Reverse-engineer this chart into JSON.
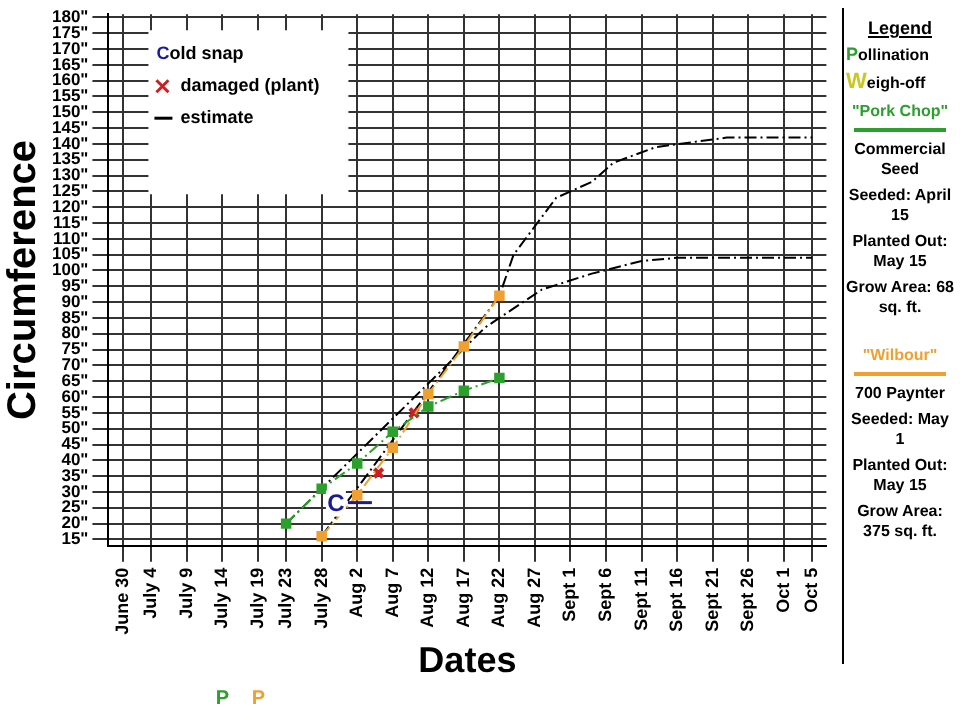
{
  "chart_data": {
    "type": "line",
    "xlabel": "Dates",
    "ylabel": "Circumference",
    "legend_title": "Legend",
    "legend": "top left",
    "grid": true,
    "xlim": [
      "--06-28",
      "--10-07"
    ],
    "xticks": [
      {
        "value": "--06-30",
        "label": "June 30"
      },
      {
        "value": "--07-04",
        "label": "July 4"
      },
      {
        "value": "--07-09",
        "label": "July 9"
      },
      {
        "value": "--07-14",
        "label": "July 14"
      },
      {
        "value": "--07-19",
        "label": "July 19"
      },
      {
        "value": "--07-23",
        "label": "July 23"
      },
      {
        "value": "--07-28",
        "label": "July 28"
      },
      {
        "value": "--08-02",
        "label": "Aug 2"
      },
      {
        "value": "--08-07",
        "label": "Aug 7"
      },
      {
        "value": "--08-12",
        "label": "Aug 12"
      },
      {
        "value": "--08-17",
        "label": "Aug 17"
      },
      {
        "value": "--08-22",
        "label": "Aug 22"
      },
      {
        "value": "--08-27",
        "label": "Aug 27"
      },
      {
        "value": "--09-01",
        "label": "Sept 1"
      },
      {
        "value": "--09-06",
        "label": "Sept 6"
      },
      {
        "value": "--09-11",
        "label": "Sept 11"
      },
      {
        "value": "--09-16",
        "label": "Sept 16"
      },
      {
        "value": "--09-21",
        "label": "Sept 21"
      },
      {
        "value": "--09-26",
        "label": "Sept 26"
      },
      {
        "value": "--10-01",
        "label": "Oct 1"
      },
      {
        "value": "--10-05",
        "label": "Oct 5"
      }
    ],
    "ylim": [
      13,
      181
    ],
    "yticks": [
      {
        "value": 15,
        "label": "15\""
      },
      {
        "value": 20,
        "label": "20\""
      },
      {
        "value": 25,
        "label": "25\""
      },
      {
        "value": 30,
        "label": "30\""
      },
      {
        "value": 35,
        "label": "35\""
      },
      {
        "value": 40,
        "label": "40\""
      },
      {
        "value": 45,
        "label": "45\""
      },
      {
        "value": 50,
        "label": "50\""
      },
      {
        "value": 55,
        "label": "55\""
      },
      {
        "value": 60,
        "label": "60\""
      },
      {
        "value": 65,
        "label": "65\""
      },
      {
        "value": 70,
        "label": "70\""
      },
      {
        "value": 75,
        "label": "75\""
      },
      {
        "value": 80,
        "label": "80\""
      },
      {
        "value": 85,
        "label": "85\""
      },
      {
        "value": 90,
        "label": "90\""
      },
      {
        "value": 95,
        "label": "95\""
      },
      {
        "value": 100,
        "label": "100\""
      },
      {
        "value": 105,
        "label": "105\""
      },
      {
        "value": 110,
        "label": "110\""
      },
      {
        "value": 115,
        "label": "115\""
      },
      {
        "value": 120,
        "label": "120\""
      },
      {
        "value": 125,
        "label": "125\""
      },
      {
        "value": 130,
        "label": "130\""
      },
      {
        "value": 135,
        "label": "135\""
      },
      {
        "value": 140,
        "label": "140\""
      },
      {
        "value": 145,
        "label": "145\""
      },
      {
        "value": 150,
        "label": "150\""
      },
      {
        "value": 155,
        "label": "155\""
      },
      {
        "value": 160,
        "label": "160\""
      },
      {
        "value": 165,
        "label": "165\""
      },
      {
        "value": 170,
        "label": "170\""
      },
      {
        "value": 175,
        "label": "175\""
      },
      {
        "value": 180,
        "label": "180\""
      }
    ],
    "series": [
      {
        "name": "\"Pork Chop\"",
        "type": "line",
        "color": "#2ca02c",
        "marker": "square",
        "line_style": "dashed",
        "x": [
          "--07-23",
          "--07-28",
          "--08-02",
          "--08-07",
          "--08-12",
          "--08-17",
          "--08-22"
        ],
        "values": [
          20,
          31,
          39,
          49,
          57,
          62,
          66
        ]
      },
      {
        "name": "\"Wilbour\"",
        "type": "line",
        "color": "#f0a030",
        "marker": "square",
        "line_style": "dashed",
        "x": [
          "--07-28",
          "--08-02",
          "--08-07",
          "--08-12",
          "--08-17",
          "--08-22"
        ],
        "values": [
          16,
          29,
          44,
          61,
          76,
          92
        ]
      },
      {
        "name": "damaged (plant)",
        "type": "scatter",
        "color": "#cc2020",
        "marker": "cross",
        "x": [
          "--08-05",
          "--08-10"
        ],
        "values": [
          36,
          55
        ]
      },
      {
        "name": "estimate",
        "type": "line",
        "color": "#000000",
        "marker": "none",
        "line_style": "dashed",
        "x": [
          "--07-28",
          "--08-22",
          "--08-24",
          "--08-30",
          "--09-04",
          "--09-07",
          "--09-13",
          "--09-23",
          "--10-05"
        ],
        "values": [
          16,
          92,
          105,
          123,
          128,
          134,
          139,
          142,
          142
        ]
      },
      {
        "type": "line",
        "color": "#000000",
        "marker": "none",
        "line_style": "dashed",
        "x": [
          "--07-23",
          "--08-20",
          "--08-22",
          "--08-28",
          "--09-04",
          "--09-11",
          "--09-16",
          "--10-05"
        ],
        "values": [
          20,
          82,
          85,
          94,
          99,
          103,
          104,
          104
        ]
      }
    ],
    "annotations": [
      {
        "text": "C",
        "x": "--07-30",
        "y": 26
      },
      "P",
      "P",
      "Cold snap",
      "Pollination",
      "Weigh-off",
      "Commercial Seed",
      "Seeded: April 15",
      "Planted Out: May 15",
      "Grow Area: 68 sq. ft.",
      "700 Paynter",
      "Seeded: May 1",
      "Planted Out: May 15",
      "Grow Area: 375 sq. ft."
    ]
  }
}
